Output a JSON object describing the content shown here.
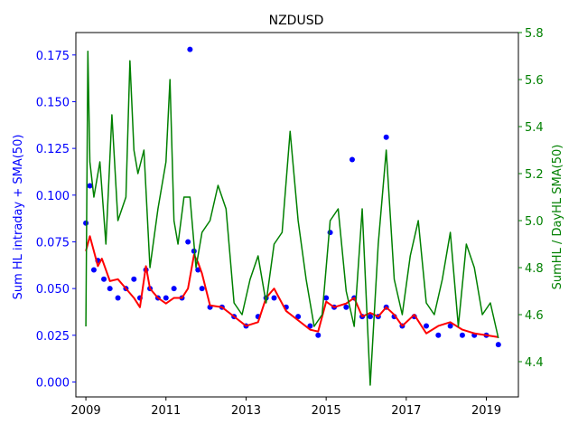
{
  "chart_data": {
    "type": "scatter",
    "title": "NZDUSD",
    "xlabel": "",
    "ylabel_left": "Sum HL intraday + SMA(50)",
    "ylabel_right": "SumHL / DayHL SMA(50)",
    "xlim": [
      2008.75,
      2019.8
    ],
    "ylim_left": [
      -0.008,
      0.187
    ],
    "ylim_right": [
      4.25,
      5.8
    ],
    "x_ticks": [
      2009,
      2011,
      2013,
      2015,
      2017,
      2019
    ],
    "x_tick_labels": [
      "2009",
      "2011",
      "2013",
      "2015",
      "2017",
      "2019"
    ],
    "y_left_ticks": [
      0.0,
      0.025,
      0.05,
      0.075,
      0.1,
      0.125,
      0.15,
      0.175
    ],
    "y_left_tick_labels": [
      "0.000",
      "0.025",
      "0.050",
      "0.075",
      "0.100",
      "0.125",
      "0.150",
      "0.175"
    ],
    "y_right_ticks": [
      4.4,
      4.6,
      4.8,
      5.0,
      5.2,
      5.4,
      5.6,
      5.8
    ],
    "y_right_tick_labels": [
      "4.4",
      "4.6",
      "4.8",
      "5.0",
      "5.2",
      "5.4",
      "5.6",
      "5.8"
    ],
    "grid": false,
    "colors": {
      "scatter": "#0000ff",
      "sma": "#ff0000",
      "ratio": "#008000",
      "left_axis": "#0000ff",
      "right_axis": "#008000"
    },
    "series": [
      {
        "axis": "left",
        "style": "scatter",
        "color": "#0000ff",
        "x": [
          2009.0,
          2009.1,
          2009.2,
          2009.3,
          2009.45,
          2009.6,
          2009.8,
          2010.0,
          2010.2,
          2010.35,
          2010.5,
          2010.6,
          2010.8,
          2011.0,
          2011.2,
          2011.4,
          2011.55,
          2011.7,
          2011.8,
          2011.9,
          2012.1,
          2012.4,
          2012.7,
          2013.0,
          2013.3,
          2013.5,
          2013.7,
          2014.0,
          2014.3,
          2014.6,
          2014.8,
          2015.0,
          2015.2,
          2015.5,
          2015.7,
          2015.9,
          2016.1,
          2016.3,
          2016.5,
          2016.7,
          2016.9,
          2017.2,
          2017.5,
          2017.8,
          2018.1,
          2018.4,
          2018.7,
          2019.0,
          2019.3,
          2011.6,
          2016.5,
          2015.65,
          2015.1
        ],
        "y": [
          0.085,
          0.105,
          0.06,
          0.065,
          0.055,
          0.05,
          0.045,
          0.05,
          0.055,
          0.045,
          0.06,
          0.05,
          0.045,
          0.045,
          0.05,
          0.045,
          0.075,
          0.07,
          0.06,
          0.05,
          0.04,
          0.04,
          0.035,
          0.03,
          0.035,
          0.045,
          0.045,
          0.04,
          0.035,
          0.03,
          0.025,
          0.045,
          0.04,
          0.04,
          0.045,
          0.035,
          0.035,
          0.035,
          0.04,
          0.035,
          0.03,
          0.035,
          0.03,
          0.025,
          0.03,
          0.025,
          0.025,
          0.025,
          0.02,
          0.178,
          0.131,
          0.119,
          0.08
        ]
      },
      {
        "axis": "left",
        "style": "line",
        "color": "#ff0000",
        "x": [
          2009.0,
          2009.1,
          2009.2,
          2009.3,
          2009.4,
          2009.5,
          2009.6,
          2009.8,
          2010.0,
          2010.2,
          2010.35,
          2010.5,
          2010.6,
          2010.8,
          2011.0,
          2011.2,
          2011.4,
          2011.55,
          2011.7,
          2011.8,
          2011.9,
          2012.1,
          2012.4,
          2012.7,
          2013.0,
          2013.3,
          2013.5,
          2013.7,
          2014.0,
          2014.3,
          2014.6,
          2014.8,
          2015.0,
          2015.2,
          2015.5,
          2015.7,
          2015.9,
          2016.1,
          2016.3,
          2016.5,
          2016.7,
          2016.9,
          2017.2,
          2017.5,
          2017.8,
          2018.1,
          2018.4,
          2018.7,
          2019.0,
          2019.3
        ],
        "y": [
          0.07,
          0.078,
          0.07,
          0.062,
          0.066,
          0.06,
          0.054,
          0.055,
          0.05,
          0.045,
          0.04,
          0.062,
          0.05,
          0.045,
          0.042,
          0.045,
          0.045,
          0.05,
          0.068,
          0.064,
          0.058,
          0.041,
          0.04,
          0.035,
          0.03,
          0.032,
          0.045,
          0.05,
          0.038,
          0.033,
          0.028,
          0.027,
          0.043,
          0.04,
          0.042,
          0.045,
          0.035,
          0.037,
          0.035,
          0.04,
          0.036,
          0.03,
          0.036,
          0.026,
          0.03,
          0.032,
          0.028,
          0.026,
          0.025,
          0.024
        ]
      },
      {
        "axis": "right",
        "style": "line",
        "color": "#008000",
        "x": [
          2009.0,
          2009.05,
          2009.1,
          2009.2,
          2009.35,
          2009.5,
          2009.65,
          2009.8,
          2010.0,
          2010.1,
          2010.2,
          2010.3,
          2010.45,
          2010.6,
          2010.8,
          2011.0,
          2011.1,
          2011.2,
          2011.3,
          2011.45,
          2011.6,
          2011.75,
          2011.9,
          2012.1,
          2012.3,
          2012.5,
          2012.7,
          2012.9,
          2013.1,
          2013.3,
          2013.5,
          2013.7,
          2013.9,
          2014.1,
          2014.3,
          2014.5,
          2014.7,
          2014.9,
          2015.1,
          2015.3,
          2015.5,
          2015.7,
          2015.9,
          2016.1,
          2016.3,
          2016.5,
          2016.7,
          2016.9,
          2017.1,
          2017.3,
          2017.5,
          2017.7,
          2017.9,
          2018.1,
          2018.3,
          2018.5,
          2018.7,
          2018.9,
          2019.1,
          2019.3
        ],
        "y": [
          4.55,
          5.72,
          5.25,
          5.1,
          5.25,
          4.9,
          5.45,
          5.0,
          5.1,
          5.68,
          5.3,
          5.2,
          5.3,
          4.8,
          5.05,
          5.25,
          5.6,
          5.0,
          4.9,
          5.1,
          5.1,
          4.8,
          4.95,
          5.0,
          5.15,
          5.05,
          4.65,
          4.6,
          4.75,
          4.85,
          4.65,
          4.9,
          4.95,
          5.38,
          5.0,
          4.75,
          4.55,
          4.6,
          5.0,
          5.05,
          4.7,
          4.55,
          5.05,
          4.3,
          4.9,
          5.3,
          4.75,
          4.6,
          4.85,
          5.0,
          4.65,
          4.6,
          4.75,
          4.95,
          4.55,
          4.9,
          4.8,
          4.6,
          4.65,
          4.5
        ]
      }
    ]
  }
}
